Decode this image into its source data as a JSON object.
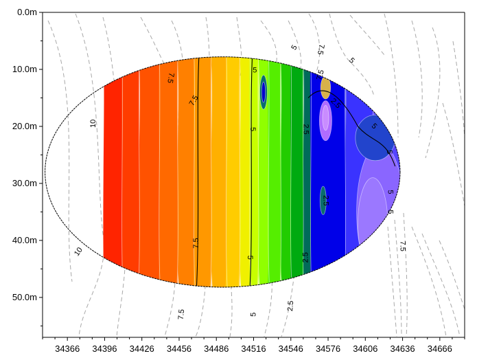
{
  "chart_data": {
    "type": "heatmap",
    "title": "",
    "xlabel": "",
    "ylabel": "",
    "xlim": [
      34346,
      34686
    ],
    "ylim": [
      57,
      0
    ],
    "x_ticks": [
      "34366",
      "34396",
      "34426",
      "34456",
      "34486",
      "34516",
      "34546",
      "34576",
      "34606",
      "34636",
      "34666"
    ],
    "y_ticks": [
      "0.0m",
      "10.0m",
      "20.0m",
      "30.0m",
      "40.0m",
      "50.0m"
    ],
    "x_tick_values": [
      34366,
      34396,
      34426,
      34456,
      34486,
      34516,
      34546,
      34576,
      34606,
      34636,
      34666
    ],
    "y_tick_values": [
      0,
      10,
      20,
      30,
      40,
      50
    ],
    "grid": false,
    "ellipse": {
      "cx": 34491,
      "cy": 28,
      "rx": 143,
      "ry": 20.2
    },
    "color_bands": [
      {
        "x_from": 34395,
        "x_to": 34410,
        "color": "#ff2400"
      },
      {
        "x_from": 34410,
        "x_to": 34424,
        "color": "#ff3c00"
      },
      {
        "x_from": 34424,
        "x_to": 34440,
        "color": "#ff5200"
      },
      {
        "x_from": 34440,
        "x_to": 34455,
        "color": "#ff6900"
      },
      {
        "x_from": 34455,
        "x_to": 34468,
        "color": "#ff8000"
      },
      {
        "x_from": 34468,
        "x_to": 34482,
        "color": "#ff9800"
      },
      {
        "x_from": 34482,
        "x_to": 34494,
        "color": "#ffb000"
      },
      {
        "x_from": 34494,
        "x_to": 34505,
        "color": "#ffcc00"
      },
      {
        "x_from": 34505,
        "x_to": 34513,
        "color": "#f0f000"
      },
      {
        "x_from": 34513,
        "x_to": 34520,
        "color": "#c8ff00"
      },
      {
        "x_from": 34520,
        "x_to": 34528,
        "color": "#90ff00"
      },
      {
        "x_from": 34528,
        "x_to": 34538,
        "color": "#55ee00"
      },
      {
        "x_from": 34538,
        "x_to": 34546,
        "color": "#22cc00"
      },
      {
        "x_from": 34546,
        "x_to": 34556,
        "color": "#00aa10"
      },
      {
        "x_from": 34556,
        "x_to": 34562,
        "color": "#006b5a"
      },
      {
        "x_from": 34562,
        "x_to": 34590,
        "color": "#0000e8"
      },
      {
        "x_from": 34590,
        "x_to": 34612,
        "color": "#3a33ff"
      },
      {
        "x_from": 34612,
        "x_to": 34640,
        "color": "#5544ff"
      }
    ],
    "overlays": [
      {
        "shape": "blob",
        "x": 34524,
        "y": 14,
        "rx": 3,
        "ry": 3,
        "color": "#0a6d6d"
      },
      {
        "shape": "blob",
        "x": 34524,
        "y": 14,
        "rx": 1.5,
        "ry": 1.8,
        "color": "#0000cc"
      },
      {
        "shape": "blob",
        "x": 34574,
        "y": 19,
        "rx": 5,
        "ry": 3.5,
        "color": "#b06cff"
      },
      {
        "shape": "blob",
        "x": 34574,
        "y": 18.5,
        "rx": 2.5,
        "ry": 2.2,
        "color": "#c98cff"
      },
      {
        "shape": "blob",
        "x": 34572,
        "y": 33,
        "rx": 2.5,
        "ry": 2.5,
        "color": "#0a6d6d"
      },
      {
        "shape": "blob",
        "x": 34618,
        "y": 35,
        "rx": 19,
        "ry": 12,
        "color": "#8a66ff"
      },
      {
        "shape": "blob",
        "x": 34612,
        "y": 37,
        "rx": 12,
        "ry": 8,
        "color": "#9b78ff"
      },
      {
        "shape": "blob",
        "x": 34574,
        "y": 13.2,
        "rx": 4,
        "ry": 2,
        "color": "#d7b24a"
      },
      {
        "shape": "blob",
        "x": 34614,
        "y": 22,
        "rx": 16,
        "ry": 4,
        "color": "#2244cc"
      }
    ],
    "black_contours": [
      {
        "level": "7.5",
        "x_at_top": 34472,
        "x_at_bottom": 34470
      },
      {
        "level": "5",
        "x_at_top": 34515,
        "x_at_bottom": 34513
      }
    ],
    "contour_labels": [
      {
        "text": "10",
        "x": 34387,
        "y": 19.5,
        "rot": -90
      },
      {
        "text": "10",
        "x": 34375,
        "y": 42,
        "rot": -55
      },
      {
        "text": "7.5",
        "x": 34449,
        "y": 11.5,
        "rot": 100
      },
      {
        "text": "7.5",
        "x": 34458,
        "y": 53,
        "rot": -85
      },
      {
        "text": "7.5",
        "x": 34468,
        "y": 15.5,
        "rot": -60
      },
      {
        "text": "7.5",
        "x": 34470,
        "y": 40.5,
        "rot": -90
      },
      {
        "text": "5",
        "x": 34549,
        "y": 6.2,
        "rot": -60
      },
      {
        "text": "5",
        "x": 34517,
        "y": 10.2,
        "rot": 0
      },
      {
        "text": "5",
        "x": 34515,
        "y": 20.5,
        "rot": 90
      },
      {
        "text": "5",
        "x": 34513,
        "y": 43,
        "rot": 90
      },
      {
        "text": "5",
        "x": 34516,
        "y": 53,
        "rot": -90
      },
      {
        "text": "5",
        "x": 34595,
        "y": 8.5,
        "rot": 45
      },
      {
        "text": "5",
        "x": 34613,
        "y": 20,
        "rot": 45
      },
      {
        "text": "5",
        "x": 34625,
        "y": 24.5,
        "rot": 90
      },
      {
        "text": "5",
        "x": 34626,
        "y": 31.5,
        "rot": 90
      },
      {
        "text": "5",
        "x": 34626,
        "y": 35,
        "rot": 90
      },
      {
        "text": "7.5",
        "x": 34570,
        "y": 6.5,
        "rot": 100
      },
      {
        "text": "7.5",
        "x": 34570,
        "y": 11,
        "rot": -75
      },
      {
        "text": "7.5",
        "x": 34636,
        "y": 41,
        "rot": 90
      },
      {
        "text": "2.5",
        "x": 34558,
        "y": 20.5,
        "rot": 90
      },
      {
        "text": "2.5",
        "x": 34574,
        "y": 33,
        "rot": 90
      },
      {
        "text": "2.5",
        "x": 34582,
        "y": 16,
        "rot": 45
      },
      {
        "text": "2.5",
        "x": 34558,
        "y": 43,
        "rot": -90
      },
      {
        "text": "2.5",
        "x": 34546,
        "y": 51.5,
        "rot": -85
      }
    ]
  }
}
